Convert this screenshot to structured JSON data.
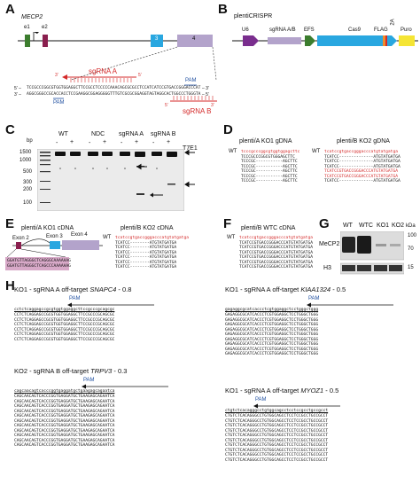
{
  "panels": {
    "A": "A",
    "B": "B",
    "C": "C",
    "D": "D",
    "E": "E",
    "F": "F",
    "G": "G",
    "H": "H"
  },
  "panelA": {
    "gene": "MECP2",
    "exons": [
      "e1",
      "e2",
      "3",
      "4"
    ],
    "sgA": "sgRNA A",
    "sgB": "sgRNA B",
    "pam": "PAM",
    "end5": "5’ –",
    "end3": "– 3’",
    "end3b": "3’ –",
    "end5b": "– 5’",
    "seq1": "TCCGCCCGGCGTGGTGGAGGCTTCCGCCTCCCCCAAACAGCGCGCCTCCATCATCCGTGACCGGGACCCAT",
    "seq2": "AGGCGGGCCGCACCACCTCCGAAGGCGGAGGGGGTTTGTCGCGCGGAGGTAGTAGGCACTGGCCCTGGGTA",
    "arrow3": "3’",
    "arrow5": "5’"
  },
  "panelB": {
    "title": "plentiCRISPR",
    "parts": [
      "U6",
      "sgRNA A/B",
      "EFS",
      "Cas9",
      "FLAG",
      "2A",
      "Puro"
    ]
  },
  "panelC": {
    "bp": "bp",
    "ladder": [
      "1500",
      "1000",
      "500",
      "300",
      "200",
      "100"
    ],
    "groups": [
      "WT",
      "NDC",
      "sgRNA A",
      "sgRNA B"
    ],
    "signs": [
      "-",
      "+",
      "-",
      "+",
      "-",
      "+",
      "-",
      "+"
    ],
    "enzyme": "T7E1"
  },
  "panelD": {
    "left_title": "plenti/A KO1 gDNA",
    "right_title": "plenti/B KO2 gDNA",
    "wt": "WT",
    "left_seqs": [
      "tcccgcccggcgtggtggagcttc",
      "TCCCGCCCGGCGTGGGAGCTTC",
      "TCCCGC-----------AGCTTC",
      "TCCCGC-----------AGCTTC",
      "TCCCGC-----------AGCTTC",
      "TCCCGC-----------AGCTTC",
      "TCCCGC-----------AGCTTC"
    ],
    "right_seqs": [
      "tcatccgtgaccgggacccatgtatgatga",
      "TCATCC--------------ATGTATGATGA",
      "TCATCC--------------ATGTATGATGA",
      "TCATCC--------------ATGTATGATGA",
      "TCATCCGTGACCGGGACCCATGTATGATGA",
      "TCATCCGTGACCGGGACCCATGTATGATGA",
      "TCATCC--------------ATGTATGATGA"
    ]
  },
  "panelE": {
    "left_title": "plenti/A KO1 cDNA",
    "right_title": "plenti/B KO2 cDNA",
    "exons": [
      "Exon 2",
      "Exon 3",
      "Exon 4"
    ],
    "junction": [
      "GGATGTTAGGGCTCAGGGCAAAAAAG",
      "GGATGTTAGGGCTCAGCCCAAAAAAG"
    ],
    "wt": "WT",
    "right_seqs": [
      "tcatccgtgaccgggacccatgtatgatga",
      "TCATCC--------ATGTATGATGA",
      "TCATCC--------ATGTATGATGA",
      "TCATCC--------ATGTATGATGA",
      "TCATCC--------ATGTATGATGA",
      "TCATCC--------ATGTATGATGA",
      "TCATCC--------ATGTATGATGA"
    ]
  },
  "panelF": {
    "title": "plenti/B WTC cDNA",
    "wt": "WT",
    "seqs": [
      "tcatccgtgaccgggacccatgtatgatga",
      "TCATCCGTGACCGGGACCCATGTATGATGA",
      "TCATCCGTGACCGGGACCCATGTATGATGA",
      "TCATCCGTGACCGGGACCCATGTATGATGA",
      "TCATCCGTGACCGGGACCCATGTATGATGA",
      "TCATCCGTGACCGGGACCCATGTATGATGA",
      "TCATCCGTGACCGGGACCCATGTATGATGA"
    ]
  },
  "panelG": {
    "lanes": [
      "WT",
      "WTC",
      "KO1",
      "KO2"
    ],
    "kda": "kDa",
    "markers": [
      "100",
      "70",
      "15"
    ],
    "rows": [
      "MeCP2",
      "H3"
    ]
  },
  "panelH": {
    "pam": "PAM",
    "blocks": [
      {
        "title_pre": "KO1 - sgRNA A off-target ",
        "gene": "SNAPC4",
        "title_post": " - 0.8",
        "ref": "cctctcaggagccgcgtggtggaggcttccgcccgcagcgc",
        "seqs": [
          "CCTCTCAGGAGCCGCGTGGTGGAGGCTTCCGCCCGCAGCGC",
          "CCTCTCAGGAGCCGCGTGGTGGAGGCTTCCGCCCGCAGCGC",
          "CCTCTCAGGAGCCGCGTGGTGGAGGCTTCCGCCCGCAGCGC",
          "CCTCTCAGGAGCCGCGTGGTGGAGGCTTCCGCCCGCAGCGC",
          "CCTCTCAGGAGCCGCGTGGTGGAGGCTTCCGCCCGCAGCGC",
          "CCTCTCAGGAGCCGCGTGGTGGAGGCTTCCGCCCGCAGCGC"
        ]
      },
      {
        "title_pre": "KO1 - sgRNA A off-target ",
        "gene": "KIAA1324",
        "title_post": " - 0.5",
        "ref": "gagaggcgcatcaccctcgtggaggctcctgggctggg",
        "seqs": [
          "GAGAGGCGCATCACCCTCGTGGAGGCTCCTGGGCTGGG",
          "GAGAGGCGCATCACCCTCGTGGAGGCTCCTGGGCTGGG",
          "GAGAGGCGCATCACCCTCGTGGAGGCTCCTGGGCTGGG",
          "GAGAGGCGCATCACCCTCGTGGAGGCTCCTGGGCTGGG",
          "GAGAGGCGCATCACCCTCGTGGAGGCTCCTGGGCTGGG",
          "GAGAGGCGCATCACCCTCGTGGAGGCTCCTGGGCTGGG",
          "GAGAGGCGCATCACCCTCGTGGAGGCTCCTGGGCTGGG",
          "GAGAGGCGCATCACCCTCGTGGAGGCTCCTGGGCTGGG",
          "GAGAGGCGCATCACCCTCGTGGAGGCTCCTGGGCTGGG"
        ]
      },
      {
        "title_pre": "KO2 - sgRNA B off-target ",
        "gene": "TRPV3",
        "title_post": " - 0.3",
        "ref": "cagcaacagtcacccggtgaggatgctgaagagcagaatca",
        "seqs": [
          "CAGCAACAGTCACCCGGTGAGGATGCTGAAGAGCAGAATCA",
          "CAGCAACAGTCACCCGGTGAGGATGCTGAAGAGCAGAATCA",
          "CAGCAACAGTCACCCGGTGAGGATGCTGAAGAGCAGAATCA",
          "CAGCAACAGTCACCCGGTGAGGATGCTGAAGAGCAGAATCA",
          "CAGCAACAGTCACCCGGTGAGGATGCTGAAGAGCAGAATCA",
          "CAGCAACAGTCACCCGGTGAGGATGCTGAAGAGCAGAATCA",
          "CAGCAACAGTCACCCGGTGAGGATGCTGAAGAGCAGAATCA",
          "CAGCAACAGTCACCCGGTGAGGATGCTGAAGAGCAGAATCA",
          "CAGCAACAGTCACCCGGTGAGGATGCTGAAGAGCAGAATCA",
          "CAGCAACAGTCACCCGGTGAGGATGCTGAAGAGCAGAATCA",
          "CAGCAACAGTCACCCGGTGAGGATGCTGAAGAGCAGAATCA"
        ]
      },
      {
        "title_pre": "KO1 - sgRNA A off-target ",
        "gene": "MYOZ1",
        "title_post": " - 0.5",
        "ref": "ctgtctcacagggcctgtggcagcctcctccgcctgccgcct",
        "seqs": [
          "CTGTCTCACAGGGCCTGTGGCAGCCTCCTCCGCCTGCCGCCT",
          "CTGTCTCACAGGGCCTGTGGCAGCCTCCTCCGCCTGCCGCCT",
          "CTGTCTCACAGGGCCTGTGGCAGCCTCCTCCGCCTGCCGCCT",
          "CTGTCTCACAGGGCCTGTGGCAGCCTCCTCCGCCTGCCGCCT",
          "CTGTCTCACAGGGCCTGTGGCAGCCTCCTCCGCCTGCCGCCT",
          "CTGTCTCACAGGGCCTGTGGCAGCCTCCTCCGCCTGCCGCCT",
          "CTGTCTCACAGGGCCTGTGGCAGCCTCCTCCGCCTGCCGCCT",
          "CTGTCTCACAGGGCCTGTGGCAGCCTCCTCCGCCTGCCGCCT",
          "CTGTCTCACAGGGCCTGTGGCAGCCTCCTCCGCCTGCCGCCT",
          "CTGTCTCACAGGGCCTGTGGCAGCCTCCTCCGCCTGCCGCCT"
        ]
      }
    ]
  }
}
